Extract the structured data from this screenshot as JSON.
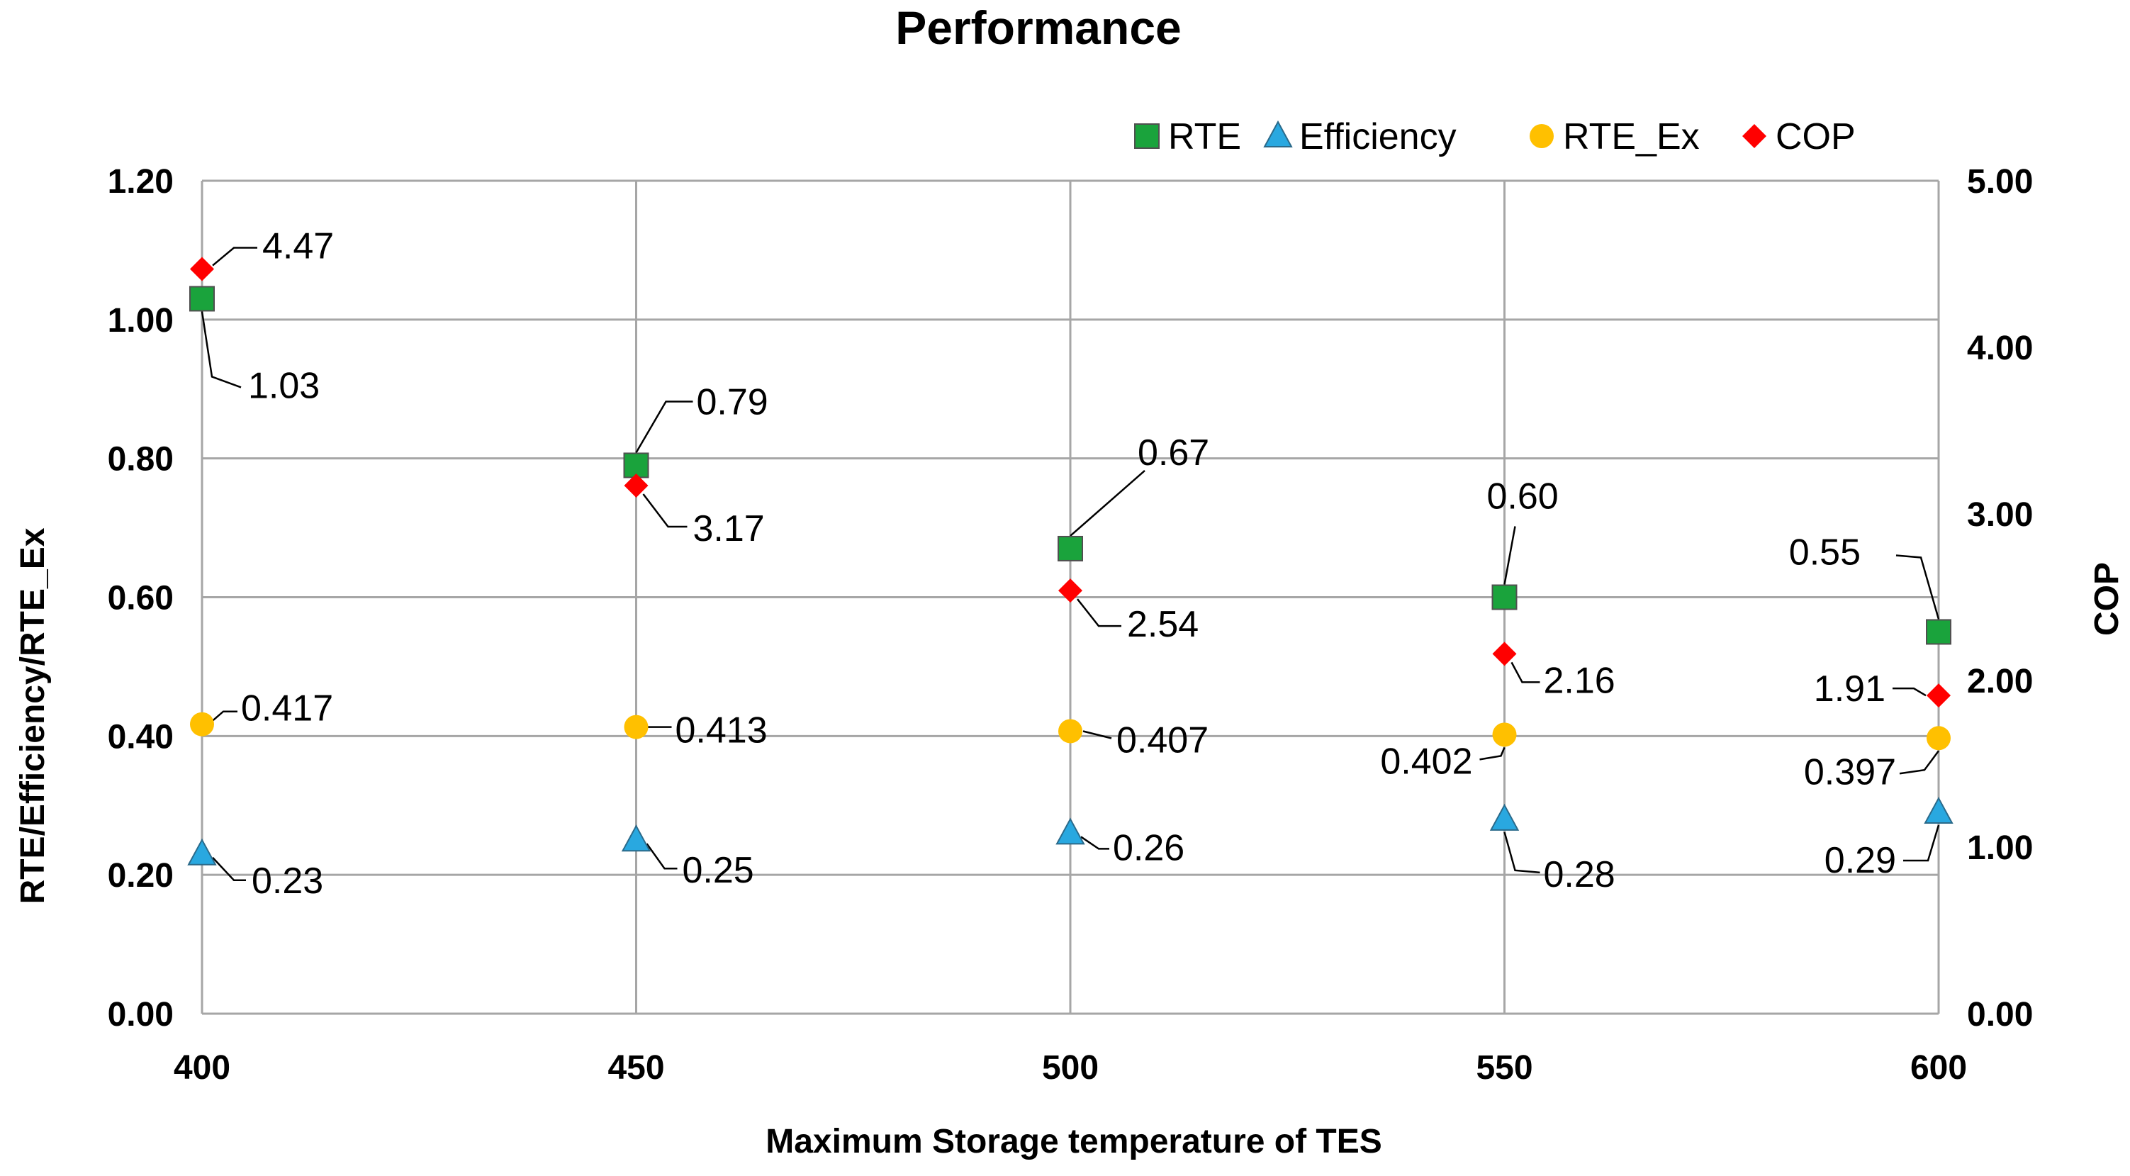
{
  "chart_data": {
    "type": "scatter",
    "title": "Performance",
    "xlabel": "Maximum Storage temperature of TES",
    "ylabel": "RTE/Efficiency/RTE_Ex",
    "y2label": "COP",
    "x": [
      400,
      450,
      500,
      550,
      600
    ],
    "xlim": [
      400,
      600
    ],
    "ylim": [
      0,
      1.2
    ],
    "y2lim": [
      0,
      5
    ],
    "xticks": [
      "400",
      "450",
      "500",
      "550",
      "600"
    ],
    "yticks": [
      "0.00",
      "0.20",
      "0.40",
      "0.60",
      "0.80",
      "1.00",
      "1.20"
    ],
    "y2ticks": [
      "0.00",
      "1.00",
      "2.00",
      "3.00",
      "4.00",
      "5.00"
    ],
    "grid": true,
    "legend_position": "top-right",
    "series": [
      {
        "name": "RTE",
        "axis": "left",
        "marker": "square",
        "color": "#1aa33c",
        "values": [
          1.03,
          0.79,
          0.67,
          0.6,
          0.55
        ],
        "labels": [
          "1.03",
          "0.79",
          "0.67",
          "0.60",
          "0.55"
        ]
      },
      {
        "name": "Efficiency",
        "axis": "left",
        "marker": "triangle",
        "color": "#29a8e0",
        "values": [
          0.23,
          0.25,
          0.26,
          0.28,
          0.29
        ],
        "labels": [
          "0.23",
          "0.25",
          "0.26",
          "0.28",
          "0.29"
        ]
      },
      {
        "name": "RTE_Ex",
        "axis": "left",
        "marker": "circle",
        "color": "#ffc000",
        "values": [
          0.417,
          0.413,
          0.407,
          0.402,
          0.397
        ],
        "labels": [
          "0.417",
          "0.413",
          "0.407",
          "0.402",
          "0.397"
        ]
      },
      {
        "name": "COP",
        "axis": "right",
        "marker": "diamond",
        "color": "#ff0000",
        "values": [
          4.47,
          3.17,
          2.54,
          2.16,
          1.91
        ],
        "labels": [
          "4.47",
          "3.17",
          "2.54",
          "2.16",
          "1.91"
        ]
      }
    ]
  }
}
